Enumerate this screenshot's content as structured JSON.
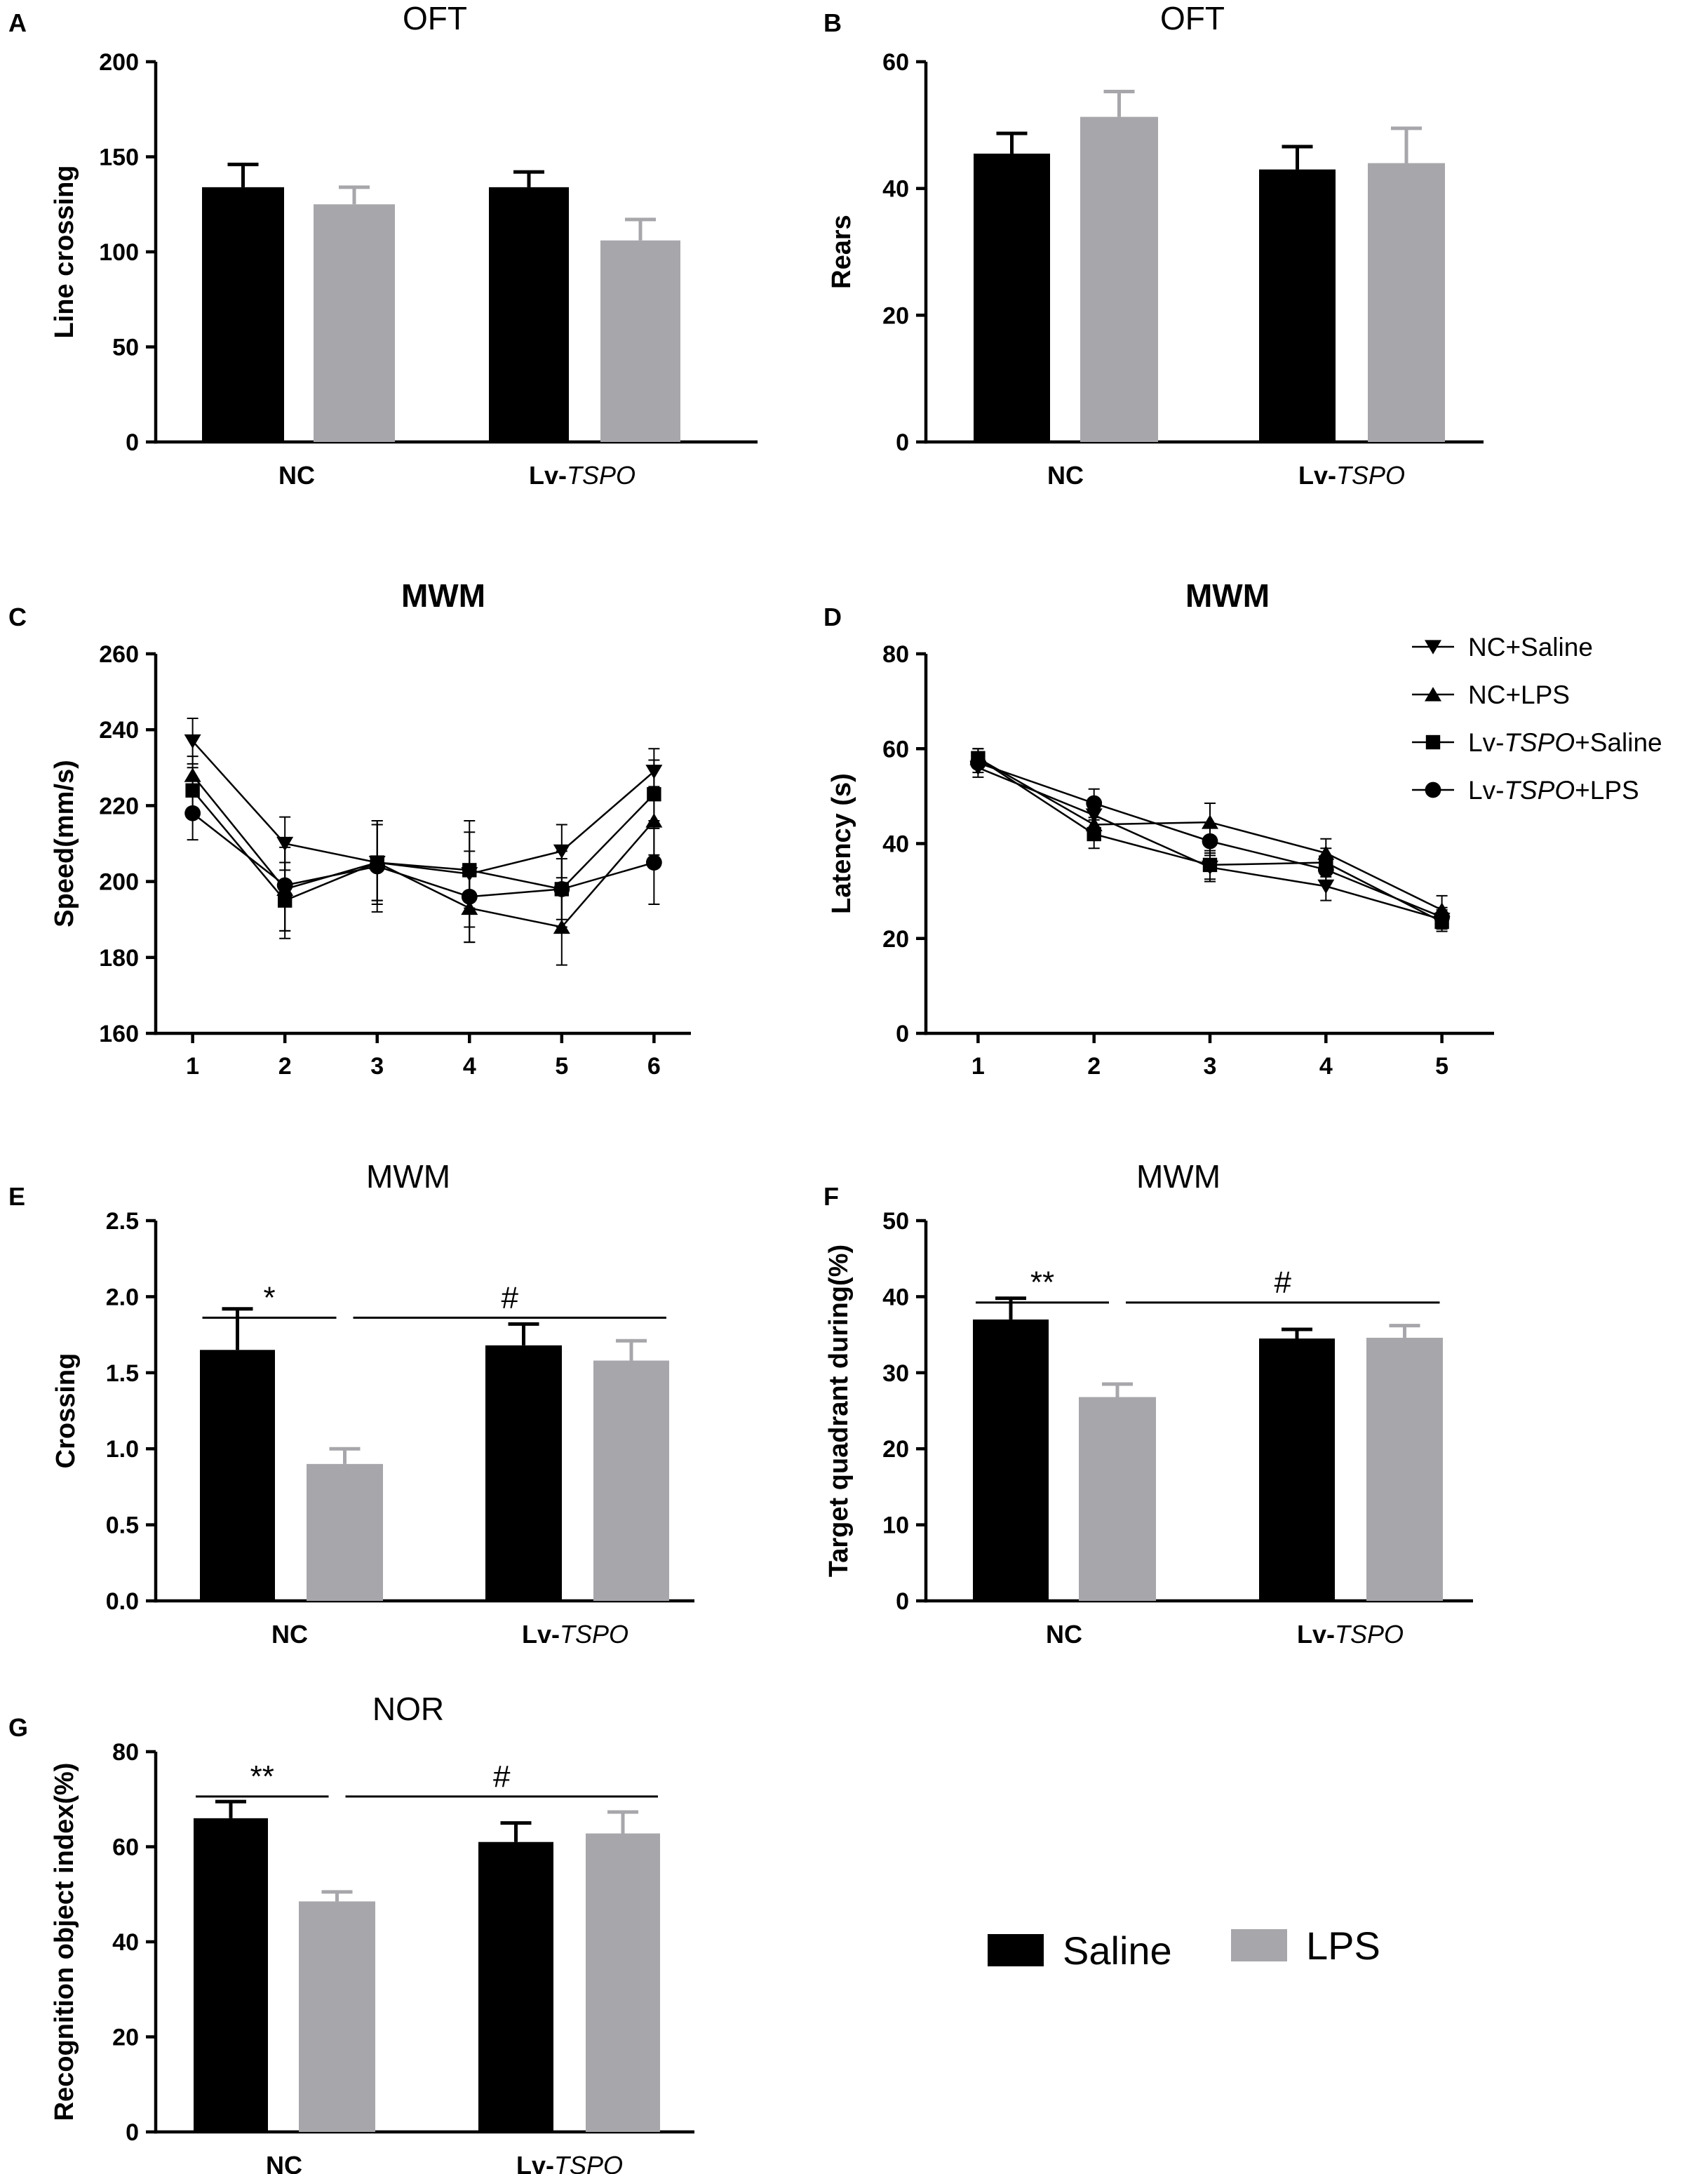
{
  "colors": {
    "saline": "#000000",
    "lps": "#a7a7ab",
    "axis": "#000000"
  },
  "legend_bar": {
    "saline": "Saline",
    "lps": "LPS"
  },
  "legend_line": [
    {
      "label_parts": [
        "NC+Saline"
      ],
      "marker": "triangle-down"
    },
    {
      "label_parts": [
        "NC+LPS"
      ],
      "marker": "triangle-up"
    },
    {
      "label_parts": [
        "Lv-",
        "TSPO",
        "+Saline"
      ],
      "marker": "square"
    },
    {
      "label_parts": [
        "Lv-",
        "TSPO",
        "+LPS"
      ],
      "marker": "circle"
    }
  ],
  "chart_data": [
    {
      "panel": "A",
      "type": "bar",
      "title": "OFT",
      "title_bold": false,
      "ylabel": "Line crossing",
      "ylim": [
        0,
        200
      ],
      "yticks": [
        0,
        50,
        100,
        150,
        200
      ],
      "groups": [
        {
          "prefix": "NC",
          "italic": ""
        },
        {
          "prefix": "Lv-",
          "italic": "TSPO"
        }
      ],
      "series": [
        {
          "name": "Saline",
          "values": [
            134,
            134
          ],
          "errors": [
            12,
            8
          ]
        },
        {
          "name": "LPS",
          "values": [
            125,
            106
          ],
          "errors": [
            9,
            11
          ]
        }
      ],
      "annotations": []
    },
    {
      "panel": "B",
      "type": "bar",
      "title": "OFT",
      "title_bold": false,
      "ylabel": "Rears",
      "ylim": [
        0,
        60
      ],
      "yticks": [
        0,
        20,
        40,
        60
      ],
      "groups": [
        {
          "prefix": "NC",
          "italic": ""
        },
        {
          "prefix": "Lv-",
          "italic": "TSPO"
        }
      ],
      "series": [
        {
          "name": "Saline",
          "values": [
            45.5,
            43
          ],
          "errors": [
            3.2,
            3.6
          ]
        },
        {
          "name": "LPS",
          "values": [
            51.3,
            44
          ],
          "errors": [
            4,
            5.5
          ]
        }
      ],
      "annotations": []
    },
    {
      "panel": "C",
      "type": "line",
      "title": "MWM",
      "title_bold": true,
      "ylabel": "Speed(mm/s)",
      "ylim": [
        160,
        260
      ],
      "yticks": [
        160,
        180,
        200,
        220,
        240,
        260
      ],
      "x": [
        1,
        2,
        3,
        4,
        5,
        6
      ],
      "xlim": [
        0.6,
        6.4
      ],
      "series": [
        {
          "name": "NC+Saline",
          "marker": "triangle-down",
          "values": [
            237,
            210,
            205,
            202,
            208,
            229
          ],
          "errors": [
            6,
            7,
            10,
            14,
            7,
            6
          ]
        },
        {
          "name": "NC+LPS",
          "marker": "triangle-up",
          "values": [
            228,
            198,
            205,
            193,
            188,
            216
          ],
          "errors": [
            5,
            11,
            11,
            9,
            10,
            9
          ]
        },
        {
          "name": "Lv-TSPO+Saline",
          "marker": "square",
          "values": [
            224,
            195,
            205,
            203,
            198,
            223
          ],
          "errors": [
            6,
            10,
            10,
            10,
            8,
            9
          ]
        },
        {
          "name": "Lv-TSPO+LPS",
          "marker": "circle",
          "values": [
            218,
            199,
            204,
            196,
            198,
            205
          ],
          "errors": [
            7,
            12,
            12,
            12,
            10,
            11
          ]
        }
      ]
    },
    {
      "panel": "D",
      "type": "line",
      "title": "MWM",
      "title_bold": true,
      "ylabel": "Latency (s)",
      "ylim": [
        0,
        80
      ],
      "yticks": [
        0,
        20,
        40,
        60,
        80
      ],
      "x": [
        1,
        2,
        3,
        4,
        5
      ],
      "xlim": [
        0.55,
        5.45
      ],
      "series": [
        {
          "name": "NC+Saline",
          "marker": "triangle-down",
          "values": [
            56,
            46,
            35,
            31,
            24
          ],
          "errors": [
            2,
            3,
            3,
            3,
            2
          ]
        },
        {
          "name": "NC+LPS",
          "marker": "triangle-up",
          "values": [
            58,
            44,
            44.5,
            38,
            26
          ],
          "errors": [
            2,
            3,
            4,
            3,
            3
          ]
        },
        {
          "name": "Lv-TSPO+Saline",
          "marker": "square",
          "values": [
            58,
            42,
            35.5,
            36,
            23.5
          ],
          "errors": [
            2,
            3,
            3,
            3,
            2
          ]
        },
        {
          "name": "Lv-TSPO+LPS",
          "marker": "circle",
          "values": [
            57,
            48.5,
            40.5,
            34.5,
            24.5
          ],
          "errors": [
            2,
            3,
            3,
            3,
            2
          ]
        }
      ]
    },
    {
      "panel": "E",
      "type": "bar",
      "title": "MWM",
      "title_bold": false,
      "ylabel": "Crossing",
      "ylim": [
        0,
        2.5
      ],
      "yticks": [
        0.0,
        0.5,
        1.0,
        1.5,
        2.0,
        2.5
      ],
      "decimals": 1,
      "groups": [
        {
          "prefix": "NC",
          "italic": ""
        },
        {
          "prefix": "Lv-",
          "italic": "TSPO"
        }
      ],
      "series": [
        {
          "name": "Saline",
          "values": [
            1.65,
            1.68
          ],
          "errors": [
            0.27,
            0.14
          ]
        },
        {
          "name": "LPS",
          "values": [
            0.9,
            1.58
          ],
          "errors": [
            0.1,
            0.13
          ]
        }
      ],
      "annotations": [
        {
          "text": "*",
          "from_bar": 0,
          "to_bar": 1,
          "level": 2.0
        },
        {
          "text": "#",
          "from_bar": 1,
          "to_bar": 3,
          "level": 2.0
        }
      ]
    },
    {
      "panel": "F",
      "type": "bar",
      "title": "MWM",
      "title_bold": false,
      "ylabel": "Target quadrant during(%)",
      "ylim": [
        0,
        50
      ],
      "yticks": [
        0,
        10,
        20,
        30,
        40,
        50
      ],
      "groups": [
        {
          "prefix": "NC",
          "italic": ""
        },
        {
          "prefix": "Lv-",
          "italic": "TSPO"
        }
      ],
      "series": [
        {
          "name": "Saline",
          "values": [
            37,
            34.5
          ],
          "errors": [
            2.8,
            1.2
          ]
        },
        {
          "name": "LPS",
          "values": [
            26.8,
            34.6
          ],
          "errors": [
            1.7,
            1.6
          ]
        }
      ],
      "annotations": [
        {
          "text": "**",
          "from_bar": 0,
          "to_bar": 1,
          "level": 42
        },
        {
          "text": "#",
          "from_bar": 1,
          "to_bar": 3,
          "level": 42
        }
      ]
    },
    {
      "panel": "G",
      "type": "bar",
      "title": "NOR",
      "title_bold": false,
      "ylabel": "Recognition object index(%)",
      "ylim": [
        0,
        80
      ],
      "yticks": [
        0,
        20,
        40,
        60,
        80
      ],
      "groups": [
        {
          "prefix": "NC",
          "italic": ""
        },
        {
          "prefix": "Lv-",
          "italic": "TSPO"
        }
      ],
      "series": [
        {
          "name": "Saline",
          "values": [
            66,
            61
          ],
          "errors": [
            3.5,
            4
          ]
        },
        {
          "name": "LPS",
          "values": [
            48.5,
            62.8
          ],
          "errors": [
            2,
            4.5
          ]
        }
      ],
      "annotations": [
        {
          "text": "**",
          "from_bar": 0,
          "to_bar": 1,
          "level": 75
        },
        {
          "text": "#",
          "from_bar": 1,
          "to_bar": 3,
          "level": 75
        }
      ]
    }
  ]
}
